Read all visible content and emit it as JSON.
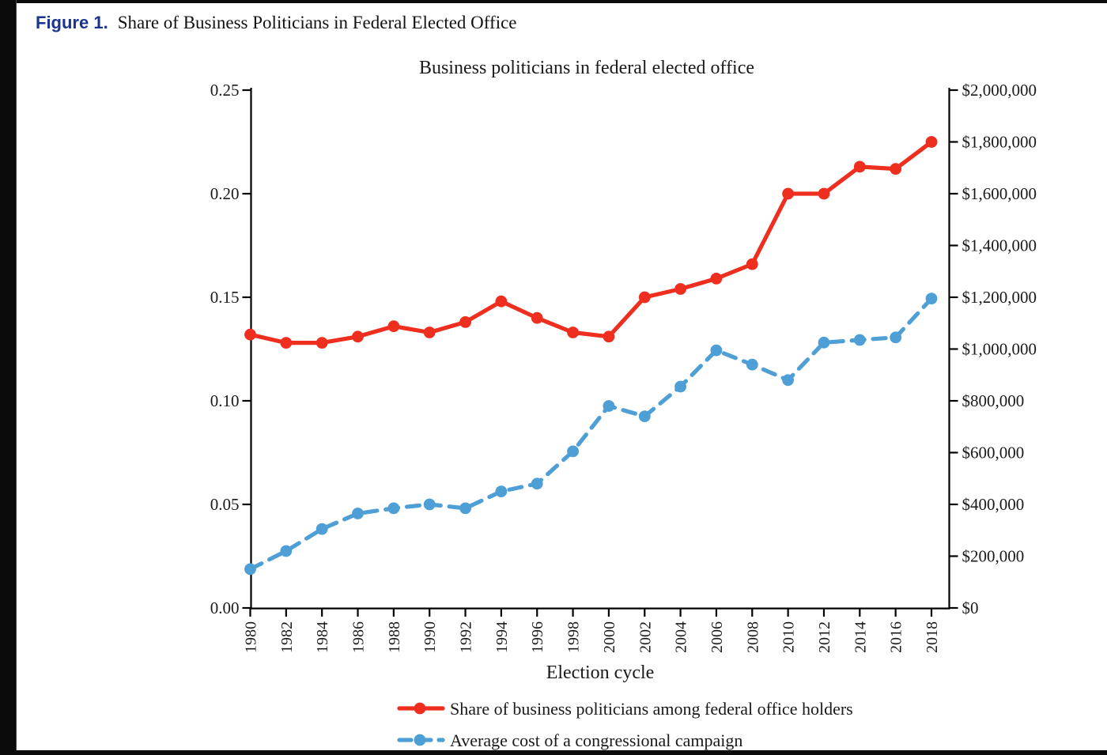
{
  "caption": {
    "label": "Figure 1.",
    "title": "Share of Business Politicians in Federal Elected Office"
  },
  "colors": {
    "caption_label": "#1b3490",
    "share_series": "#ee2e1e",
    "cost_series": "#4e9fd6",
    "axis": "#000000"
  },
  "chart_data": {
    "type": "line",
    "title": "Business politicians in federal elected office",
    "xlabel": "Election cycle",
    "x": [
      1980,
      1982,
      1984,
      1986,
      1988,
      1990,
      1992,
      1994,
      1996,
      1998,
      2000,
      2002,
      2004,
      2006,
      2008,
      2010,
      2012,
      2014,
      2016,
      2018
    ],
    "series": [
      {
        "name": "Share of business politicians among federal office holders",
        "axis": "left",
        "style": "solid",
        "color": "#ee2e1e",
        "values": [
          0.132,
          0.128,
          0.128,
          0.131,
          0.136,
          0.133,
          0.138,
          0.148,
          0.14,
          0.133,
          0.131,
          0.15,
          0.154,
          0.159,
          0.166,
          0.2,
          0.2,
          0.213,
          0.212,
          0.225
        ]
      },
      {
        "name": "Average cost of a congressional campaign",
        "axis": "right",
        "style": "dashed",
        "color": "#4e9fd6",
        "values": [
          150000,
          220000,
          305000,
          365000,
          385000,
          400000,
          385000,
          450000,
          480000,
          605000,
          780000,
          740000,
          855000,
          995000,
          940000,
          880000,
          1025000,
          1035000,
          1045000,
          1195000
        ]
      }
    ],
    "left_axis": {
      "range": [
        0,
        0.25
      ],
      "ticks": [
        0,
        0.05,
        0.1,
        0.15,
        0.2,
        0.25
      ],
      "labels": [
        "0.00",
        "0.05",
        "0.10",
        "0.15",
        "0.20",
        "0.25"
      ]
    },
    "right_axis": {
      "range": [
        0,
        2000000
      ],
      "ticks": [
        0,
        200000,
        400000,
        600000,
        800000,
        1000000,
        1200000,
        1400000,
        1600000,
        1800000,
        2000000
      ],
      "labels": [
        "$0",
        "$200,000",
        "$400,000",
        "$600,000",
        "$800,000",
        "$1,000,000",
        "$1,200,000",
        "$1,400,000",
        "$1,600,000",
        "$1,800,000",
        "$2,000,000"
      ]
    },
    "grid": false,
    "legend_position": "bottom"
  }
}
